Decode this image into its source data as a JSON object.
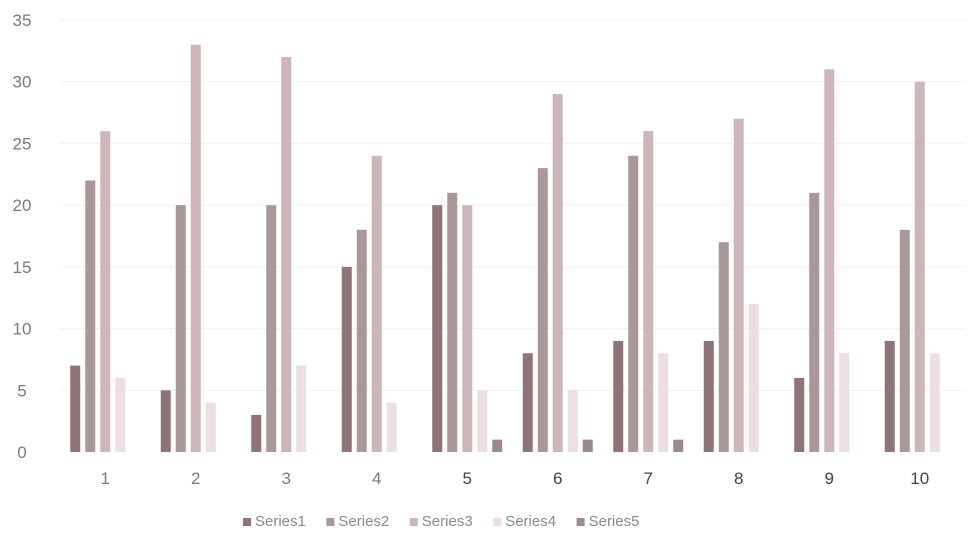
{
  "chart_data": {
    "type": "bar",
    "title": "",
    "xlabel": "",
    "ylabel": "",
    "ylim": [
      0,
      35
    ],
    "yticks": [
      "0",
      "5",
      "10",
      "15",
      "20",
      "25",
      "30",
      "35"
    ],
    "categories": [
      "1",
      "2",
      "3",
      "4",
      "5",
      "6",
      "7",
      "8",
      "9",
      "10"
    ],
    "grid": false,
    "legend_position": "bottom",
    "series": [
      {
        "name": "Series1",
        "color": "#8e7478",
        "values": [
          7,
          5,
          3,
          15,
          20,
          8,
          9,
          9,
          6,
          9
        ]
      },
      {
        "name": "Series2",
        "color": "#a9979a",
        "values": [
          22,
          20,
          20,
          18,
          21,
          23,
          24,
          17,
          21,
          18
        ]
      },
      {
        "name": "Series3",
        "color": "#cdb6ba",
        "values": [
          26,
          33,
          32,
          24,
          20,
          29,
          26,
          27,
          31,
          30
        ]
      },
      {
        "name": "Series4",
        "color": "#ecdfe1",
        "values": [
          6,
          4,
          7,
          4,
          5,
          5,
          8,
          12,
          8,
          8
        ]
      },
      {
        "name": "Series5",
        "color": "#9a8a8c",
        "values": [
          0,
          0,
          0,
          0,
          1,
          1,
          1,
          0,
          0,
          0
        ]
      }
    ]
  }
}
